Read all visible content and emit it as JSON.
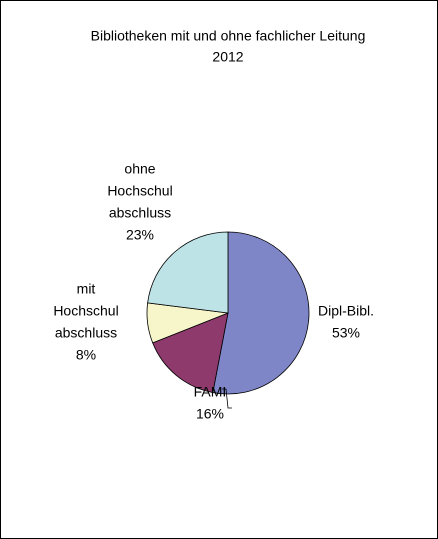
{
  "chart_data": {
    "type": "pie",
    "title": "Bibliotheken mit und ohne fachlicher Leitung",
    "subtitle": "2012",
    "categories": [
      [
        "Dipl-Bibl."
      ],
      [
        "FAMI"
      ],
      [
        "mit",
        "Hochschul",
        "abschluss"
      ],
      [
        "ohne",
        "Hochschul",
        "abschluss"
      ]
    ],
    "values": [
      53,
      16,
      8,
      23
    ],
    "value_labels": [
      "53%",
      "16%",
      "8%",
      "23%"
    ],
    "colors": [
      "#7f86c8",
      "#8e3a6c",
      "#f7f6cb",
      "#bde3e7"
    ]
  }
}
